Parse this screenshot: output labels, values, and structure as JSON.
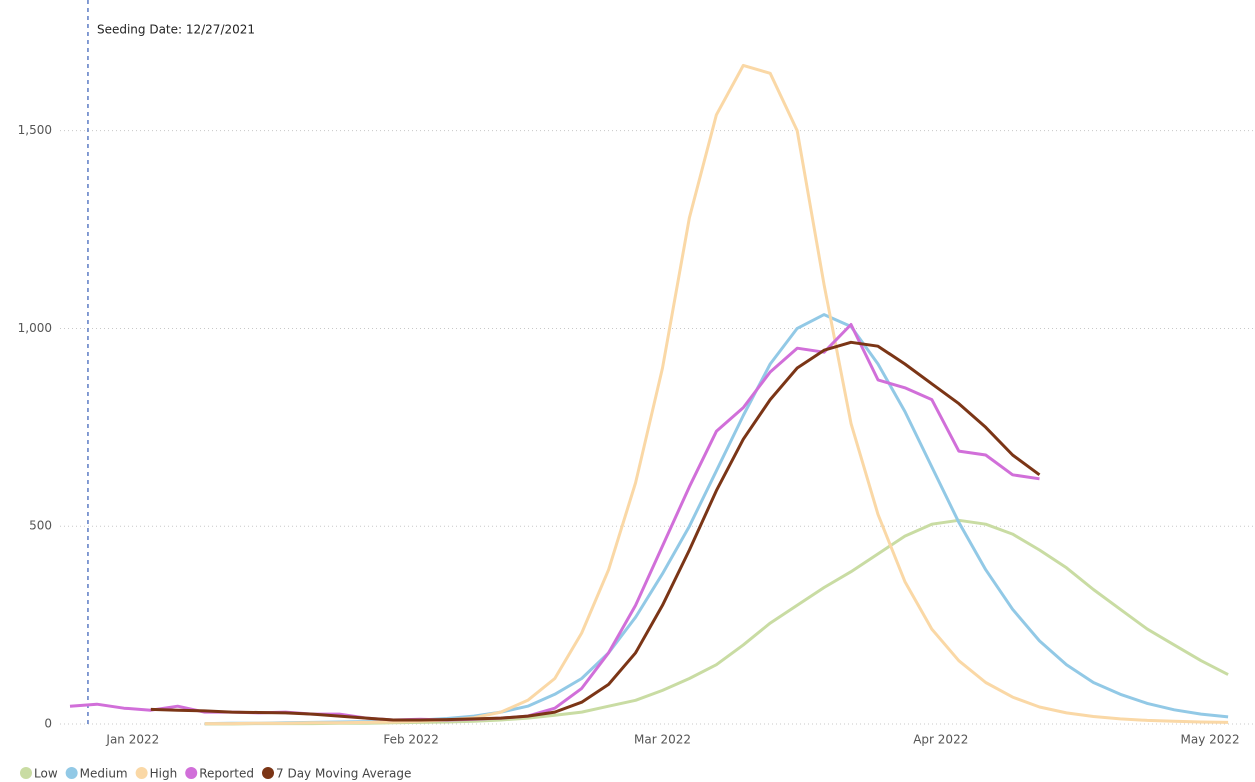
{
  "chart_data": {
    "type": "line",
    "annotation": {
      "label": "Seeding Date: 12/27/2021",
      "x": "2021-12-27"
    },
    "x": [
      "2021-12-25",
      "2021-12-28",
      "2021-12-31",
      "2022-01-03",
      "2022-01-06",
      "2022-01-09",
      "2022-01-12",
      "2022-01-15",
      "2022-01-18",
      "2022-01-21",
      "2022-01-24",
      "2022-01-27",
      "2022-01-30",
      "2022-02-02",
      "2022-02-05",
      "2022-02-08",
      "2022-02-11",
      "2022-02-14",
      "2022-02-17",
      "2022-02-20",
      "2022-02-23",
      "2022-02-26",
      "2022-03-01",
      "2022-03-04",
      "2022-03-07",
      "2022-03-10",
      "2022-03-13",
      "2022-03-16",
      "2022-03-19",
      "2022-03-22",
      "2022-03-25",
      "2022-03-28",
      "2022-03-31",
      "2022-04-03",
      "2022-04-06",
      "2022-04-09",
      "2022-04-12",
      "2022-04-15",
      "2022-04-18",
      "2022-04-21",
      "2022-04-24",
      "2022-04-27",
      "2022-04-30",
      "2022-05-03"
    ],
    "series": [
      {
        "name": "Low",
        "color": "#c9dca3",
        "values": [
          null,
          null,
          null,
          null,
          null,
          0,
          0,
          1,
          1,
          1,
          2,
          2,
          3,
          4,
          5,
          7,
          10,
          15,
          22,
          30,
          45,
          60,
          85,
          115,
          150,
          200,
          255,
          300,
          345,
          385,
          430,
          475,
          505,
          515,
          505,
          480,
          440,
          395,
          340,
          290,
          240,
          200,
          160,
          125
        ]
      },
      {
        "name": "Medium",
        "color": "#92c9e6",
        "values": [
          null,
          null,
          null,
          null,
          null,
          1,
          2,
          2,
          3,
          4,
          5,
          6,
          8,
          10,
          14,
          20,
          30,
          45,
          75,
          115,
          180,
          270,
          380,
          500,
          640,
          780,
          910,
          1000,
          1035,
          1005,
          910,
          790,
          650,
          510,
          390,
          290,
          210,
          150,
          105,
          75,
          52,
          36,
          25,
          18
        ]
      },
      {
        "name": "High",
        "color": "#fad8a6",
        "values": [
          null,
          null,
          null,
          null,
          null,
          1,
          1,
          2,
          2,
          3,
          3,
          4,
          5,
          7,
          10,
          16,
          30,
          60,
          115,
          230,
          390,
          610,
          900,
          1280,
          1540,
          1665,
          1645,
          1500,
          1110,
          760,
          530,
          360,
          240,
          160,
          105,
          68,
          43,
          28,
          19,
          13,
          9,
          7,
          5,
          4
        ]
      },
      {
        "name": "Reported",
        "color": "#d16fd9",
        "values": [
          45,
          50,
          40,
          35,
          45,
          30,
          30,
          28,
          30,
          25,
          25,
          15,
          10,
          12,
          10,
          12,
          15,
          20,
          40,
          90,
          180,
          300,
          450,
          600,
          740,
          800,
          890,
          950,
          940,
          1010,
          870,
          850,
          820,
          690,
          680,
          630,
          620,
          null,
          null,
          null,
          null,
          null,
          null,
          null
        ]
      },
      {
        "name": "7 Day Moving Average",
        "color": "#7b3516",
        "values": [
          null,
          null,
          null,
          37,
          35,
          33,
          30,
          29,
          28,
          25,
          20,
          15,
          10,
          10,
          11,
          13,
          15,
          20,
          30,
          55,
          100,
          180,
          300,
          440,
          590,
          720,
          820,
          900,
          945,
          965,
          955,
          910,
          860,
          810,
          750,
          680,
          630,
          null,
          null,
          null,
          null,
          null,
          null,
          null
        ]
      }
    ],
    "xlim": [
      "2021-12-25",
      "2022-05-06"
    ],
    "xticks": [
      {
        "value": "2022-01-01",
        "label": "Jan 2022"
      },
      {
        "value": "2022-02-01",
        "label": "Feb 2022"
      },
      {
        "value": "2022-03-01",
        "label": "Mar 2022"
      },
      {
        "value": "2022-04-01",
        "label": "Apr 2022"
      },
      {
        "value": "2022-05-01",
        "label": "May 2022"
      }
    ],
    "ylim": [
      0,
      1800
    ],
    "yticks": [
      0,
      500,
      {
        "value": 1000,
        "label": "1,000"
      },
      {
        "value": 1500,
        "label": "1,500"
      }
    ],
    "grid": true,
    "legend": "bottom-left"
  }
}
